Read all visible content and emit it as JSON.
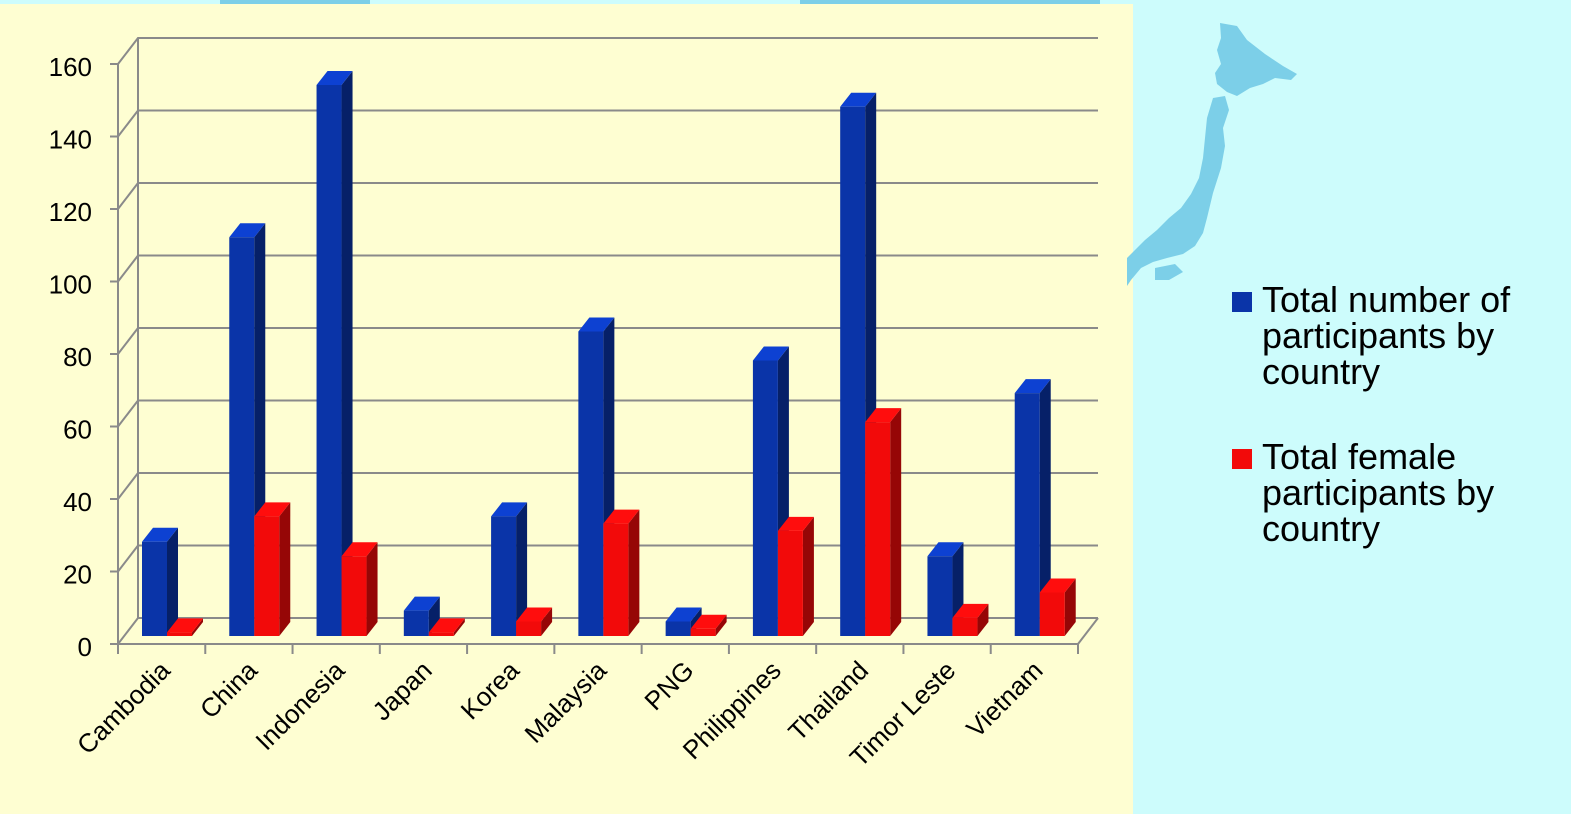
{
  "colors": {
    "series_total": "#0a34a8",
    "series_female": "#f20a0a",
    "plot_background": "#fefed2",
    "page_background": "#cdfcfc",
    "map": "#7ccfe8"
  },
  "map_icon": "japan-map",
  "legend": {
    "items": [
      {
        "label": "Total number of participants by country",
        "color": "#0a34a8"
      },
      {
        "label": "Total female participants by country",
        "color": "#f20a0a"
      }
    ]
  },
  "chart_data": {
    "type": "bar",
    "style": "3d-clustered",
    "categories": [
      "Cambodia",
      "China",
      "Indonesia",
      "Japan",
      "Korea",
      "Malaysia",
      "PNG",
      "Philippines",
      "Thailand",
      "Timor Leste",
      "Vietnam"
    ],
    "series": [
      {
        "name": "Total number of participants by country",
        "values": [
          26,
          110,
          152,
          7,
          33,
          84,
          4,
          76,
          146,
          22,
          67
        ]
      },
      {
        "name": "Total female participants by country",
        "values": [
          1,
          33,
          22,
          1,
          4,
          31,
          2,
          29,
          59,
          5,
          12
        ]
      }
    ],
    "ylim": [
      0,
      160
    ],
    "yticks": [
      0,
      20,
      40,
      60,
      80,
      100,
      120,
      140,
      160
    ],
    "grid": true,
    "legend_position": "right"
  }
}
